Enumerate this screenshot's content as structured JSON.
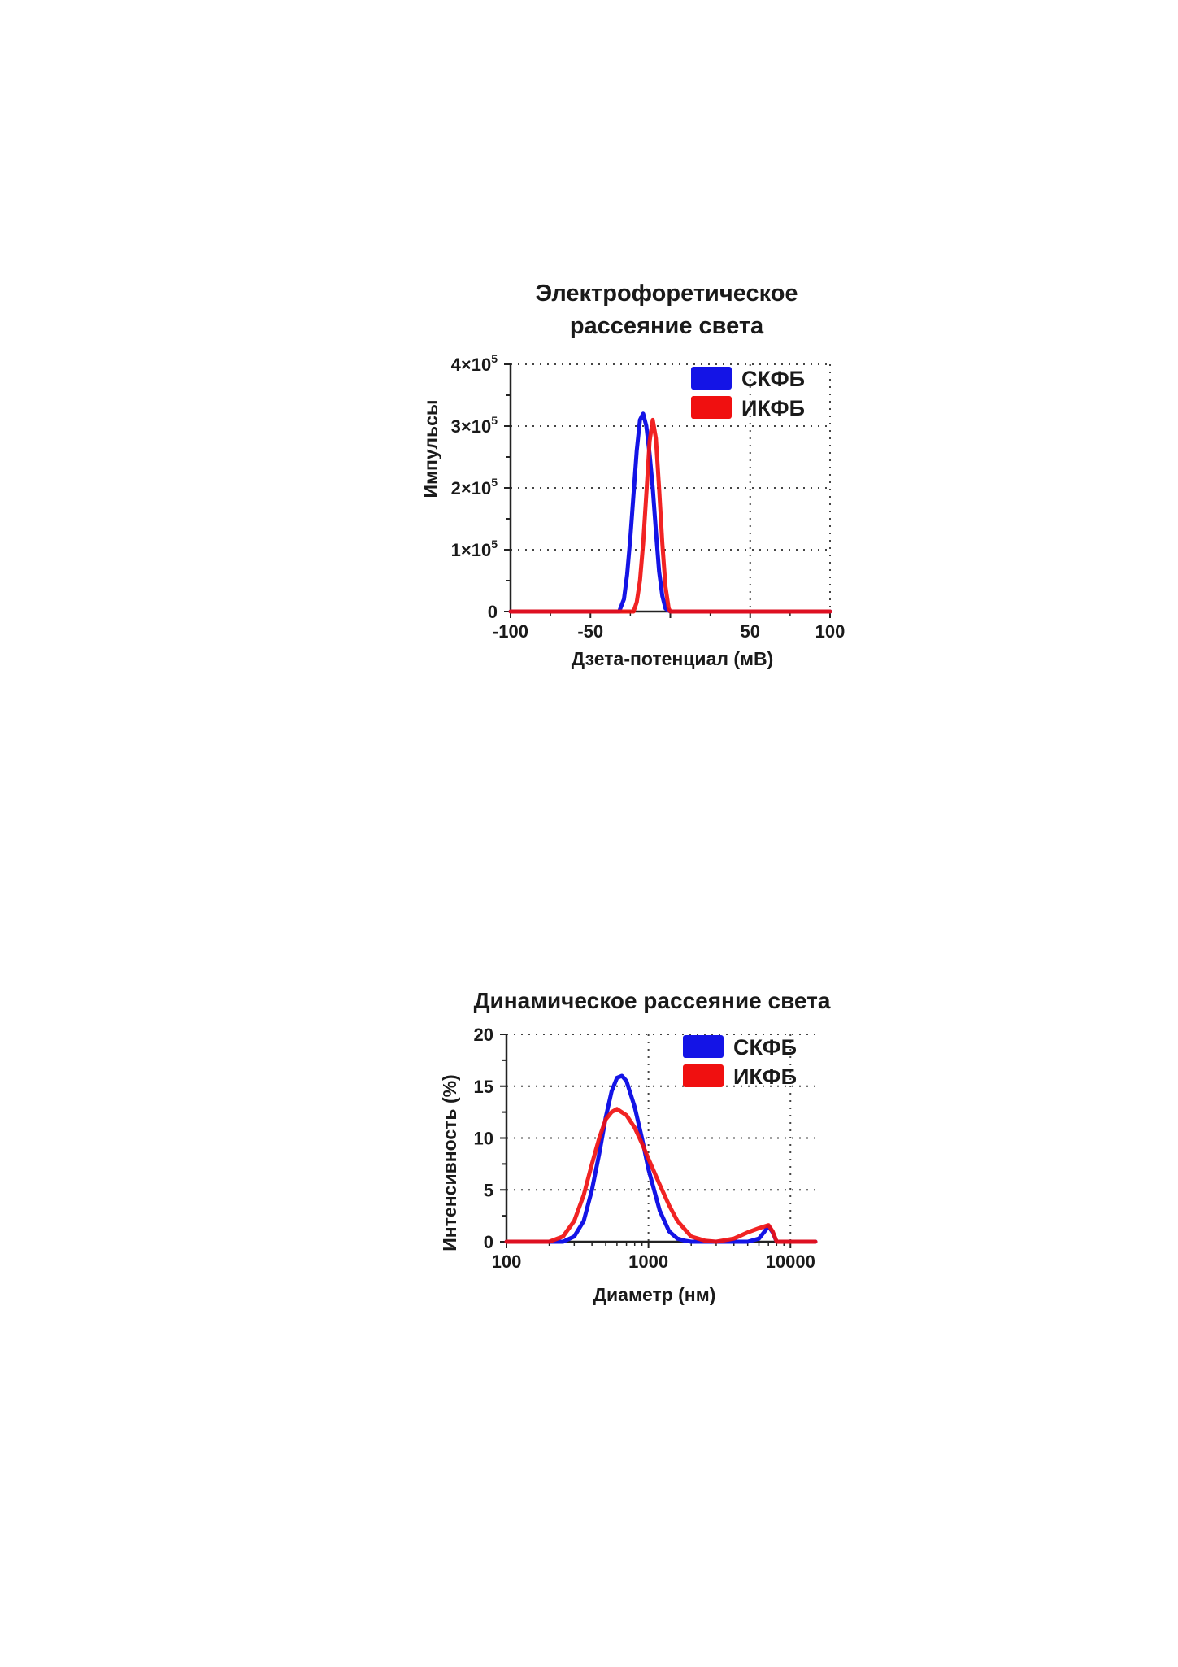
{
  "chart_data": [
    {
      "type": "line",
      "title_lines": [
        "Электрофоретическое",
        "рассеяние света"
      ],
      "xlabel": "Дзета-потенциал (мВ)",
      "ylabel": "Импульсы",
      "xlim": [
        -100,
        100
      ],
      "ylim": [
        0,
        400000
      ],
      "x_ticks": [
        -100,
        -50,
        0,
        50,
        100
      ],
      "x_tick_labels": [
        "-100",
        "-50",
        "",
        "50",
        "100"
      ],
      "y_ticks": [
        0,
        100000,
        200000,
        300000,
        400000
      ],
      "y_tick_labels": [
        {
          "base": "0",
          "exp": ""
        },
        {
          "base": "1×10",
          "exp": "5"
        },
        {
          "base": "2×10",
          "exp": "5"
        },
        {
          "base": "3×10",
          "exp": "5"
        },
        {
          "base": "4×10",
          "exp": "5"
        }
      ],
      "grid": true,
      "legend_position": "top-right",
      "series": [
        {
          "name": "СКФБ",
          "color": "#1414e6",
          "x": [
            -100,
            -32,
            -29,
            -27,
            -25,
            -23,
            -21,
            -19,
            -17,
            -15,
            -13,
            -11,
            -9,
            -7,
            -5,
            -3,
            0,
            100
          ],
          "y": [
            0,
            0,
            20000,
            60000,
            120000,
            190000,
            260000,
            310000,
            320000,
            300000,
            255000,
            200000,
            130000,
            65000,
            25000,
            5000,
            0,
            0
          ]
        },
        {
          "name": "ИКФБ",
          "color": "#f01010",
          "x": [
            -100,
            -23,
            -21,
            -19,
            -17,
            -15,
            -13,
            -11,
            -9,
            -7,
            -5,
            -3,
            -1,
            0,
            100
          ],
          "y": [
            0,
            0,
            15000,
            50000,
            110000,
            190000,
            275000,
            310000,
            280000,
            200000,
            110000,
            40000,
            5000,
            0,
            0
          ]
        }
      ]
    },
    {
      "type": "line",
      "title": "Динамическое рассеяние света",
      "xlabel": "Диаметр (нм)",
      "ylabel": "Интенсивность (%)",
      "x_scale": "log",
      "xlim": [
        100,
        15000
      ],
      "ylim": [
        0,
        20
      ],
      "x_ticks": [
        100,
        1000,
        10000
      ],
      "x_tick_labels": [
        "100",
        "1000",
        "10000"
      ],
      "y_ticks": [
        0,
        5,
        10,
        15,
        20
      ],
      "y_tick_labels": [
        "0",
        "5",
        "10",
        "15",
        "20"
      ],
      "grid": true,
      "legend_position": "top-right",
      "series": [
        {
          "name": "СКФБ",
          "color": "#1414e6",
          "x": [
            100,
            250,
            300,
            350,
            400,
            450,
            500,
            550,
            600,
            650,
            700,
            800,
            900,
            1000,
            1200,
            1400,
            1600,
            1800,
            2000,
            2500,
            5000,
            6000,
            6500,
            7000,
            7500,
            8000,
            15000
          ],
          "y": [
            0,
            0,
            0.5,
            2,
            5,
            8.5,
            12,
            14.5,
            15.8,
            16,
            15.5,
            13,
            10,
            7,
            3,
            1,
            0.3,
            0.1,
            0,
            0,
            0,
            0.3,
            0.9,
            1.5,
            0.9,
            0,
            0
          ]
        },
        {
          "name": "ИКФБ",
          "color": "#f01010",
          "x": [
            100,
            200,
            250,
            300,
            350,
            400,
            450,
            500,
            550,
            600,
            700,
            800,
            900,
            1000,
            1200,
            1400,
            1600,
            1800,
            2000,
            2500,
            3000,
            4000,
            5000,
            6000,
            7000,
            7500,
            8000,
            15000
          ],
          "y": [
            0,
            0,
            0.5,
            2,
            4.5,
            7.5,
            10,
            11.8,
            12.5,
            12.8,
            12.2,
            11,
            9.5,
            8,
            5.5,
            3.5,
            2,
            1.2,
            0.5,
            0.1,
            0,
            0.3,
            0.9,
            1.3,
            1.6,
            1,
            0,
            0
          ]
        }
      ]
    }
  ]
}
